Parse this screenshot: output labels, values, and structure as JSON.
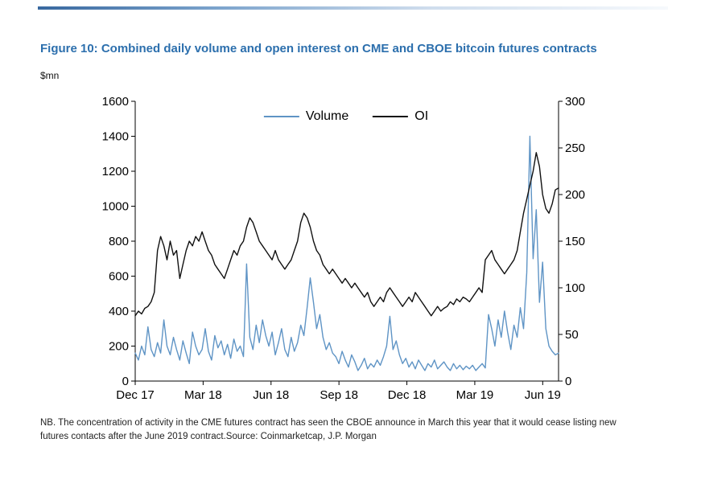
{
  "page": {
    "title": "Figure 10: Combined daily volume and open interest on CME and CBOE bitcoin futures contracts",
    "subtitle": "$mn",
    "footnote": "NB. The concentration of activity in the CME futures contract has seen the CBOE announce in March this year that it would cease listing new futures contacts after the June 2019 contract.Source: Coinmarketcap, J.P. Morgan",
    "accent_color": "#2c6fad"
  },
  "chart_data": {
    "type": "line",
    "title": "Combined daily volume and open interest on CME and CBOE bitcoin futures contracts",
    "ylabel_left": "$mn",
    "x_unit": "months since Dec 2017",
    "x_range": [
      0,
      18.7
    ],
    "x_tick_positions": [
      0,
      3,
      6,
      9,
      12,
      15,
      18
    ],
    "x_tick_labels": [
      "Dec 17",
      "Mar 18",
      "Jun 18",
      "Sep 18",
      "Dec 18",
      "Mar 19",
      "Jun 19"
    ],
    "left_axis": {
      "range": [
        0,
        1600
      ],
      "tick_step": 200
    },
    "right_axis": {
      "range": [
        0,
        300
      ],
      "tick_step": 50
    },
    "grid": false,
    "legend_position": "top-center-inside",
    "series": [
      {
        "name": "Volume",
        "axis": "left",
        "color": "#5f94c5",
        "values": [
          160,
          120,
          200,
          150,
          310,
          180,
          140,
          220,
          160,
          350,
          200,
          150,
          250,
          180,
          120,
          230,
          160,
          100,
          280,
          200,
          150,
          180,
          300,
          170,
          120,
          260,
          190,
          230,
          150,
          210,
          130,
          240,
          170,
          200,
          140,
          670,
          250,
          180,
          320,
          220,
          350,
          260,
          200,
          280,
          150,
          220,
          300,
          180,
          140,
          250,
          170,
          220,
          320,
          260,
          420,
          590,
          450,
          300,
          380,
          250,
          180,
          220,
          160,
          140,
          100,
          170,
          120,
          80,
          150,
          110,
          60,
          90,
          130,
          70,
          100,
          80,
          120,
          90,
          140,
          200,
          370,
          180,
          230,
          150,
          100,
          130,
          80,
          110,
          70,
          120,
          90,
          60,
          100,
          80,
          120,
          70,
          90,
          110,
          80,
          60,
          100,
          70,
          90,
          65,
          85,
          70,
          90,
          60,
          80,
          100,
          75,
          380,
          300,
          200,
          350,
          250,
          400,
          280,
          180,
          320,
          250,
          420,
          300,
          620,
          1400,
          700,
          980,
          450,
          680,
          300,
          200,
          170,
          150,
          160
        ]
      },
      {
        "name": "OI",
        "axis": "right",
        "color": "#111111",
        "values": [
          70,
          75,
          72,
          78,
          80,
          85,
          95,
          140,
          155,
          145,
          130,
          150,
          135,
          140,
          110,
          125,
          140,
          150,
          145,
          155,
          150,
          160,
          150,
          140,
          135,
          125,
          120,
          115,
          110,
          120,
          130,
          140,
          135,
          145,
          150,
          165,
          175,
          170,
          160,
          150,
          145,
          140,
          135,
          130,
          140,
          130,
          125,
          120,
          125,
          130,
          140,
          150,
          170,
          180,
          175,
          165,
          150,
          140,
          135,
          125,
          120,
          115,
          120,
          115,
          110,
          105,
          110,
          105,
          100,
          105,
          100,
          95,
          90,
          95,
          85,
          80,
          85,
          90,
          85,
          95,
          100,
          95,
          90,
          85,
          80,
          85,
          90,
          85,
          95,
          90,
          85,
          80,
          75,
          70,
          75,
          80,
          75,
          78,
          80,
          85,
          82,
          88,
          85,
          90,
          88,
          85,
          90,
          95,
          100,
          95,
          130,
          135,
          140,
          130,
          125,
          120,
          115,
          120,
          125,
          130,
          140,
          160,
          180,
          195,
          210,
          225,
          245,
          230,
          200,
          185,
          180,
          190,
          205,
          207
        ]
      }
    ]
  }
}
